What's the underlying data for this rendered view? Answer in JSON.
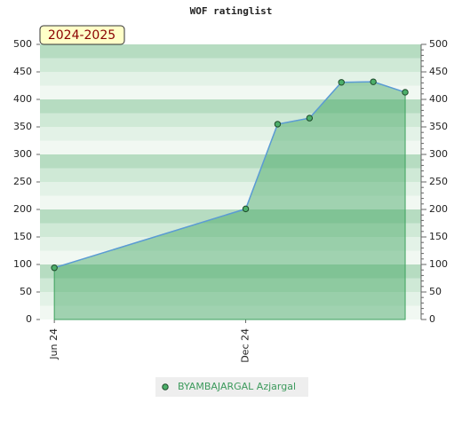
{
  "chart_data": {
    "type": "area",
    "title": "WOF ratinglist",
    "annotation": "2024-2025",
    "x": [
      0,
      6,
      7,
      8,
      9,
      10,
      11
    ],
    "xlim": [
      -0.45,
      11.5
    ],
    "xticks": [
      {
        "value": 0,
        "label": "Jun 24"
      },
      {
        "value": 6,
        "label": "Dec 24"
      }
    ],
    "ylim": [
      0,
      500
    ],
    "yticks": [
      0,
      50,
      100,
      150,
      200,
      250,
      300,
      350,
      400,
      450,
      500
    ],
    "y2lim": [
      0,
      500
    ],
    "y2ticks": [
      0,
      50,
      100,
      150,
      200,
      250,
      300,
      350,
      400,
      450,
      500
    ],
    "series": [
      {
        "name": "BYAMBAJARGAL Azjargal",
        "color": "#5b9bd5",
        "fill": "#3fa35f",
        "values": [
          94,
          201,
          355,
          366,
          431,
          432,
          413
        ]
      }
    ]
  }
}
